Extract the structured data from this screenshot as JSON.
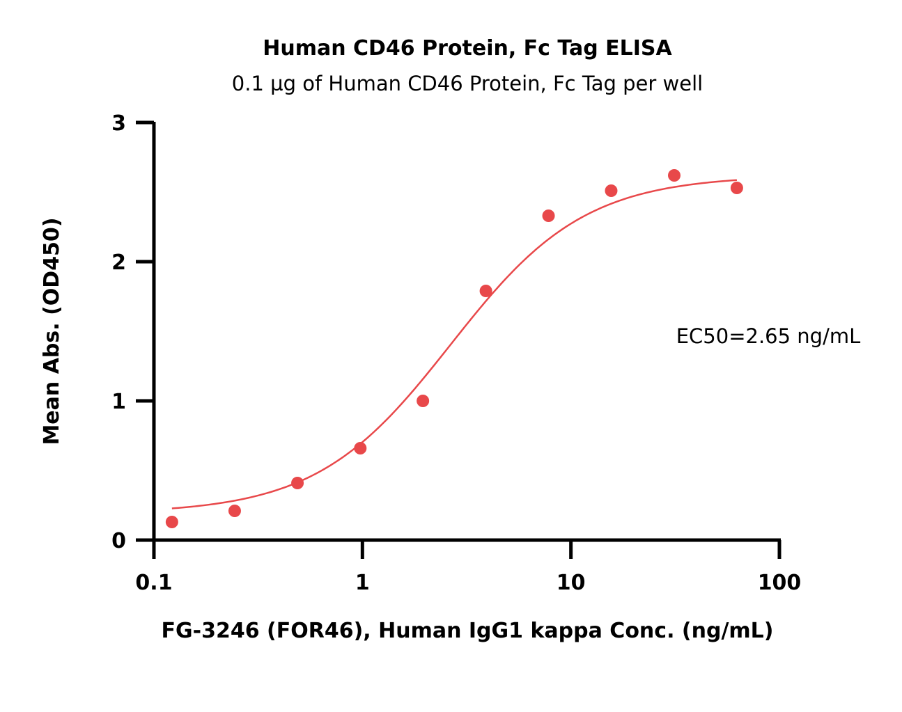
{
  "chart_data": {
    "type": "scatter",
    "title": "Human CD46 Protein, Fc Tag ELISA",
    "subtitle": "0.1 µg of Human CD46 Protein, Fc Tag per well",
    "xlabel": "FG-3246 (FOR46), Human IgG1 kappa Conc. (ng/mL)",
    "ylabel": "Mean Abs. (OD450)",
    "xscale": "log",
    "xlim": [
      0.1,
      100
    ],
    "ylim": [
      0,
      3
    ],
    "xticks": [
      0.1,
      1,
      10,
      100
    ],
    "xtick_labels": [
      "0.1",
      "1",
      "10",
      "100"
    ],
    "yticks": [
      0,
      1,
      2,
      3
    ],
    "ytick_labels": [
      "0",
      "1",
      "2",
      "3"
    ],
    "grid": false,
    "annotation": "EC50=2.65 ng/mL",
    "color": "#e8484a",
    "series": [
      {
        "name": "FG-3246 (FOR46)",
        "x": [
          0.122,
          0.244,
          0.488,
          0.977,
          1.95,
          3.91,
          7.81,
          15.6,
          31.3,
          62.5
        ],
        "y": [
          0.13,
          0.21,
          0.41,
          0.66,
          1.0,
          1.79,
          2.33,
          2.51,
          2.62,
          2.53
        ]
      }
    ],
    "fit": {
      "model": "4PL",
      "bottom": 0.19,
      "top": 2.62,
      "ec50": 2.65,
      "hill": 1.35,
      "x_range": [
        0.122,
        62.5
      ]
    }
  }
}
